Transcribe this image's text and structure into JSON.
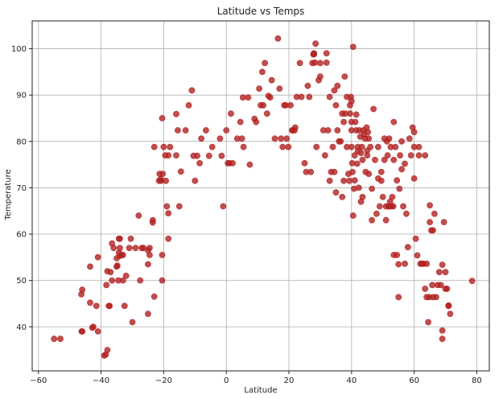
{
  "chart_data": {
    "type": "scatter",
    "title": "Latitude vs Temps",
    "xlabel": "Latitude",
    "ylabel": "Temperature",
    "xlim": [
      -62,
      84
    ],
    "ylim": [
      30.5,
      106
    ],
    "xticks": [
      -60,
      -40,
      -20,
      0,
      20,
      40,
      60,
      80
    ],
    "yticks": [
      40,
      50,
      60,
      70,
      80,
      90,
      100
    ],
    "grid": true,
    "legend": "none",
    "marker_color": "#b22222",
    "marker_alpha": 0.8,
    "series": [
      {
        "points": [
          [
            -55.0,
            37.4
          ],
          [
            -53.0,
            37.4
          ],
          [
            -46.0,
            39.0
          ],
          [
            -46.2,
            39.0
          ],
          [
            -46.3,
            47.0
          ],
          [
            -46.0,
            48.0
          ],
          [
            -43.5,
            53.0
          ],
          [
            -43.5,
            45.2
          ],
          [
            -42.5,
            40.0
          ],
          [
            -42.8,
            39.8
          ],
          [
            -41.5,
            44.5
          ],
          [
            -41.0,
            39.0
          ],
          [
            -41.0,
            55.0
          ],
          [
            -39.0,
            33.8
          ],
          [
            -38.5,
            34.0
          ],
          [
            -38.0,
            35.0
          ],
          [
            -38.3,
            49.0
          ],
          [
            -38.0,
            52.0
          ],
          [
            -37.5,
            44.5
          ],
          [
            -37.3,
            44.5
          ],
          [
            -37.0,
            51.8
          ],
          [
            -36.5,
            50.0
          ],
          [
            -36.5,
            58.0
          ],
          [
            -36.0,
            57.0
          ],
          [
            -35.0,
            53.0
          ],
          [
            -35.0,
            54.8
          ],
          [
            -34.8,
            53.2
          ],
          [
            -34.5,
            50.0
          ],
          [
            -34.3,
            56.0
          ],
          [
            -34.0,
            57.0
          ],
          [
            -34.3,
            59.0
          ],
          [
            -34.0,
            59.0
          ],
          [
            -34.0,
            55.3
          ],
          [
            -33.5,
            55.5
          ],
          [
            -33.0,
            50.0
          ],
          [
            -33.0,
            55.5
          ],
          [
            -32.5,
            44.5
          ],
          [
            -32.0,
            51.0
          ],
          [
            -31.0,
            57.0
          ],
          [
            -30.5,
            59.0
          ],
          [
            -30.0,
            41.0
          ],
          [
            -29.0,
            57.0
          ],
          [
            -28.0,
            64.0
          ],
          [
            -27.5,
            50.0
          ],
          [
            -27.0,
            57.0
          ],
          [
            -26.5,
            57.0
          ],
          [
            -25.0,
            42.8
          ],
          [
            -25.0,
            56.5
          ],
          [
            -25.0,
            53.5
          ],
          [
            -24.5,
            57.0
          ],
          [
            -24.5,
            55.5
          ],
          [
            -23.5,
            63.0
          ],
          [
            -23.5,
            62.5
          ],
          [
            -23.0,
            46.5
          ],
          [
            -23.0,
            78.8
          ],
          [
            -21.5,
            71.5
          ],
          [
            -21.3,
            73.0
          ],
          [
            -21.0,
            71.8
          ],
          [
            -20.8,
            71.5
          ],
          [
            -20.5,
            50.0
          ],
          [
            -20.5,
            55.5
          ],
          [
            -20.5,
            85.0
          ],
          [
            -20.3,
            73.0
          ],
          [
            -20.0,
            78.8
          ],
          [
            -19.5,
            77.0
          ],
          [
            -19.3,
            71.5
          ],
          [
            -19.0,
            66.0
          ],
          [
            -18.5,
            77.0
          ],
          [
            -18.5,
            59.0
          ],
          [
            -18.5,
            64.5
          ],
          [
            -18.0,
            78.8
          ],
          [
            -16.0,
            85.9
          ],
          [
            -16.0,
            77.0
          ],
          [
            -15.5,
            82.4
          ],
          [
            -15.0,
            66.0
          ],
          [
            -14.5,
            73.5
          ],
          [
            -13.0,
            82.4
          ],
          [
            -12.0,
            87.8
          ],
          [
            -11.0,
            91.0
          ],
          [
            -10.5,
            76.9
          ],
          [
            -10.0,
            71.5
          ],
          [
            -9.3,
            76.9
          ],
          [
            -8.5,
            75.3
          ],
          [
            -8.0,
            80.6
          ],
          [
            -6.5,
            82.4
          ],
          [
            -5.5,
            76.9
          ],
          [
            -4.5,
            78.8
          ],
          [
            -2.0,
            80.6
          ],
          [
            -1.5,
            76.9
          ],
          [
            -1.0,
            66.0
          ],
          [
            0.0,
            82.4
          ],
          [
            0.5,
            75.3
          ],
          [
            1.0,
            75.3
          ],
          [
            1.5,
            86.0
          ],
          [
            2.0,
            75.3
          ],
          [
            3.5,
            80.6
          ],
          [
            4.5,
            84.2
          ],
          [
            5.0,
            80.6
          ],
          [
            5.3,
            89.5
          ],
          [
            5.5,
            78.8
          ],
          [
            7.0,
            89.5
          ],
          [
            7.5,
            75.0
          ],
          [
            9.0,
            84.9
          ],
          [
            9.5,
            84.2
          ],
          [
            10.5,
            91.4
          ],
          [
            11.0,
            87.8
          ],
          [
            11.5,
            95.0
          ],
          [
            11.8,
            87.8
          ],
          [
            12.3,
            96.9
          ],
          [
            13.0,
            86.0
          ],
          [
            13.5,
            89.8
          ],
          [
            14.0,
            89.5
          ],
          [
            14.5,
            93.2
          ],
          [
            15.5,
            80.6
          ],
          [
            16.5,
            102.2
          ],
          [
            17.0,
            91.4
          ],
          [
            17.5,
            80.6
          ],
          [
            18.0,
            78.8
          ],
          [
            18.5,
            87.8
          ],
          [
            19.0,
            87.8
          ],
          [
            19.3,
            80.6
          ],
          [
            19.8,
            78.8
          ],
          [
            20.5,
            87.8
          ],
          [
            21.0,
            82.4
          ],
          [
            21.3,
            82.4
          ],
          [
            21.8,
            82.4
          ],
          [
            22.0,
            83.0
          ],
          [
            22.5,
            89.6
          ],
          [
            23.5,
            96.9
          ],
          [
            24.0,
            89.6
          ],
          [
            25.0,
            75.3
          ],
          [
            25.5,
            73.4
          ],
          [
            26.0,
            92.0
          ],
          [
            26.5,
            89.6
          ],
          [
            27.0,
            73.4
          ],
          [
            27.5,
            96.9
          ],
          [
            27.8,
            98.8
          ],
          [
            28.0,
            98.8
          ],
          [
            28.0,
            99.0
          ],
          [
            28.3,
            97.0
          ],
          [
            28.5,
            101.1
          ],
          [
            28.8,
            78.8
          ],
          [
            29.5,
            93.2
          ],
          [
            30.0,
            96.9
          ],
          [
            30.0,
            94.0
          ],
          [
            31.0,
            82.4
          ],
          [
            31.5,
            77.0
          ],
          [
            32.0,
            99.0
          ],
          [
            32.0,
            97.0
          ],
          [
            32.5,
            82.4
          ],
          [
            33.0,
            71.5
          ],
          [
            33.0,
            89.6
          ],
          [
            33.5,
            73.4
          ],
          [
            34.0,
            78.8
          ],
          [
            34.5,
            91.0
          ],
          [
            34.5,
            73.4
          ],
          [
            35.0,
            69.0
          ],
          [
            35.0,
            87.8
          ],
          [
            35.5,
            92.0
          ],
          [
            35.5,
            82.4
          ],
          [
            36.0,
            80.0
          ],
          [
            36.5,
            80.0
          ],
          [
            37.0,
            68.0
          ],
          [
            37.0,
            86.0
          ],
          [
            37.5,
            71.5
          ],
          [
            37.5,
            84.2
          ],
          [
            37.8,
            94.0
          ],
          [
            38.0,
            86.0
          ],
          [
            38.5,
            89.6
          ],
          [
            38.5,
            78.8
          ],
          [
            39.0,
            73.0
          ],
          [
            39.3,
            71.5
          ],
          [
            39.5,
            87.8
          ],
          [
            39.5,
            86.0
          ],
          [
            39.8,
            89.6
          ],
          [
            40.0,
            88.7
          ],
          [
            40.0,
            84.2
          ],
          [
            40.0,
            82.4
          ],
          [
            40.0,
            78.8
          ],
          [
            40.2,
            75.3
          ],
          [
            40.3,
            73.4
          ],
          [
            40.5,
            100.4
          ],
          [
            40.5,
            64.0
          ],
          [
            40.8,
            69.8
          ],
          [
            41.0,
            77.0
          ],
          [
            41.0,
            71.6
          ],
          [
            41.2,
            84.2
          ],
          [
            41.5,
            85.8
          ],
          [
            41.5,
            82.4
          ],
          [
            41.8,
            75.2
          ],
          [
            42.0,
            78.8
          ],
          [
            42.0,
            77.9
          ],
          [
            42.3,
            70.0
          ],
          [
            42.5,
            82.4
          ],
          [
            42.8,
            81.0
          ],
          [
            43.0,
            77.5
          ],
          [
            43.0,
            67.0
          ],
          [
            43.3,
            78.8
          ],
          [
            43.5,
            76.0
          ],
          [
            43.5,
            68.0
          ],
          [
            43.8,
            82.4
          ],
          [
            44.0,
            81.5
          ],
          [
            44.3,
            80.6
          ],
          [
            44.5,
            73.4
          ],
          [
            44.8,
            83.0
          ],
          [
            45.0,
            78.0
          ],
          [
            45.0,
            77.0
          ],
          [
            45.2,
            82.0
          ],
          [
            45.5,
            80.6
          ],
          [
            45.5,
            73.0
          ],
          [
            46.0,
            78.8
          ],
          [
            46.5,
            63.0
          ],
          [
            46.5,
            69.8
          ],
          [
            47.0,
            87.0
          ],
          [
            47.5,
            76.0
          ],
          [
            48.0,
            64.4
          ],
          [
            48.5,
            78.8
          ],
          [
            48.5,
            72.0
          ],
          [
            49.0,
            66.0
          ],
          [
            49.5,
            73.4
          ],
          [
            49.5,
            71.5
          ],
          [
            50.0,
            68.0
          ],
          [
            50.5,
            80.6
          ],
          [
            50.5,
            76.0
          ],
          [
            51.0,
            63.0
          ],
          [
            51.0,
            66.0
          ],
          [
            51.3,
            80.0
          ],
          [
            51.5,
            77.0
          ],
          [
            51.8,
            66.0
          ],
          [
            52.0,
            80.6
          ],
          [
            52.0,
            66.0
          ],
          [
            52.3,
            67.0
          ],
          [
            52.5,
            78.8
          ],
          [
            52.8,
            66.0
          ],
          [
            53.0,
            68.0
          ],
          [
            53.3,
            66.0
          ],
          [
            53.5,
            84.2
          ],
          [
            53.5,
            76.0
          ],
          [
            53.5,
            55.5
          ],
          [
            54.0,
            78.8
          ],
          [
            54.5,
            71.6
          ],
          [
            54.5,
            55.5
          ],
          [
            55.0,
            46.4
          ],
          [
            55.0,
            53.5
          ],
          [
            55.3,
            69.8
          ],
          [
            55.5,
            77.0
          ],
          [
            56.0,
            80.0
          ],
          [
            56.0,
            74.0
          ],
          [
            56.5,
            66.0
          ],
          [
            57.0,
            53.6
          ],
          [
            57.0,
            75.2
          ],
          [
            57.5,
            64.4
          ],
          [
            58.0,
            57.2
          ],
          [
            58.5,
            80.6
          ],
          [
            59.0,
            77.0
          ],
          [
            59.5,
            83.0
          ],
          [
            60.0,
            82.0
          ],
          [
            60.0,
            78.8
          ],
          [
            60.0,
            72.0
          ],
          [
            60.5,
            59.0
          ],
          [
            61.0,
            55.4
          ],
          [
            61.5,
            78.8
          ],
          [
            61.5,
            77.0
          ],
          [
            62.0,
            53.6
          ],
          [
            62.5,
            53.6
          ],
          [
            63.0,
            53.6
          ],
          [
            63.5,
            48.2
          ],
          [
            63.5,
            77.0
          ],
          [
            64.0,
            46.4
          ],
          [
            64.0,
            53.6
          ],
          [
            64.5,
            41.0
          ],
          [
            64.8,
            46.4
          ],
          [
            65.0,
            66.2
          ],
          [
            65.0,
            62.6
          ],
          [
            65.5,
            60.8
          ],
          [
            65.8,
            49.0
          ],
          [
            66.0,
            46.4
          ],
          [
            66.0,
            60.8
          ],
          [
            66.5,
            64.4
          ],
          [
            67.0,
            46.4
          ],
          [
            67.5,
            49.0
          ],
          [
            68.0,
            51.8
          ],
          [
            68.5,
            49.0
          ],
          [
            69.0,
            53.4
          ],
          [
            69.0,
            39.2
          ],
          [
            69.0,
            37.4
          ],
          [
            69.5,
            62.6
          ],
          [
            70.0,
            51.8
          ],
          [
            70.0,
            48.2
          ],
          [
            70.5,
            48.2
          ],
          [
            71.0,
            44.5
          ],
          [
            71.0,
            44.6
          ],
          [
            71.5,
            42.8
          ],
          [
            78.5,
            49.9
          ]
        ]
      }
    ]
  }
}
